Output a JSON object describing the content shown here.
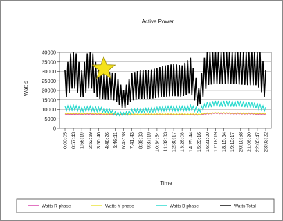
{
  "chart_data": {
    "type": "line",
    "title": "Active Power",
    "xlabel": "Time",
    "ylabel": "Watt s",
    "ylim": [
      0,
      40000
    ],
    "yticks": [
      "0",
      "5000",
      "10000",
      "15000",
      "20000",
      "25000",
      "30000",
      "35000",
      "40000"
    ],
    "x_tick_labels": [
      "0:00:05",
      "0:57:43",
      "1:55:19",
      "2:52:59",
      "3:50:40",
      "4:48:26",
      "5:46:11",
      "6:43:58",
      "7:41:43",
      "8:39:33",
      "9:37:19",
      "10:34:54",
      "11:32:33",
      "12:30:17",
      "13:28:08",
      "14:25:44",
      "15:23:16",
      "16:21:00",
      "17:18:19",
      "18:15:54",
      "19:13:17",
      "20:10:58",
      "21:08:20",
      "22:05:47",
      "23:03:22"
    ],
    "grid": true,
    "legend_position": "bottom",
    "series": [
      {
        "name": "Watts R phase",
        "color": "#d63aa8",
        "values": [
          7500,
          7500,
          7500,
          7600,
          7500,
          7400,
          7300,
          7200,
          7300,
          7300,
          7300,
          7400,
          7400,
          7300,
          7300,
          7300,
          7200,
          7800,
          8000,
          8000,
          7900,
          7800,
          7800,
          7600,
          7500
        ]
      },
      {
        "name": "Watts Y phase",
        "color": "#e8e030",
        "values": [
          7800,
          7900,
          7800,
          7900,
          7800,
          7700,
          7600,
          7500,
          7500,
          7500,
          7600,
          7600,
          7600,
          7600,
          7600,
          7600,
          7500,
          8000,
          8200,
          8200,
          8100,
          8000,
          8000,
          7900,
          7800
        ]
      },
      {
        "name": "Watts B phase",
        "color": "#22d8cc",
        "values": [
          10500,
          11000,
          10000,
          10500,
          10000,
          9500,
          8000,
          7500,
          9000,
          9500,
          9500,
          10000,
          10500,
          10500,
          10500,
          11000,
          9500,
          12500,
          13000,
          13000,
          13000,
          13000,
          12500,
          12000,
          10000
        ]
      },
      {
        "name": "Watts Total",
        "color": "#000000",
        "values": [
          23000,
          33000,
          23000,
          33000,
          23000,
          22500,
          22000,
          15000,
          22000,
          23000,
          23000,
          24000,
          25000,
          25500,
          25000,
          28000,
          16000,
          34000,
          35000,
          35000,
          35000,
          34500,
          34000,
          34000,
          23000
        ]
      }
    ]
  }
}
